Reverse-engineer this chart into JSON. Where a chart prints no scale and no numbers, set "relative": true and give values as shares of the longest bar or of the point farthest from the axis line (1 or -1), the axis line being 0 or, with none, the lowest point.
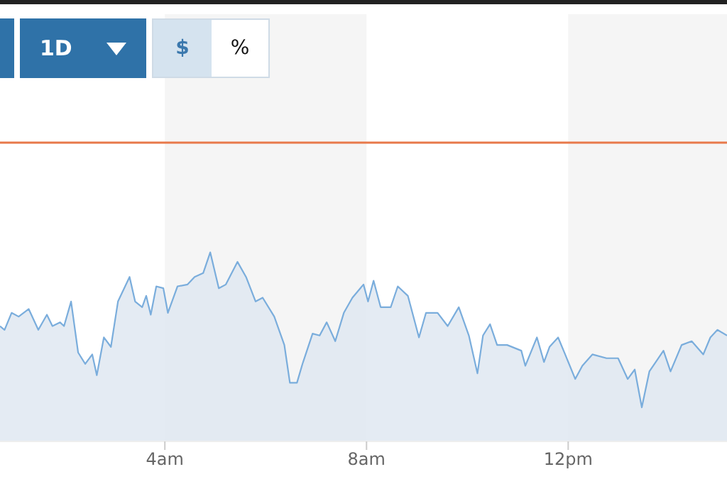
{
  "chart_data": {
    "type": "area",
    "relative": true,
    "x": [
      0.73,
      0.82,
      0.96,
      1.1,
      1.3,
      1.49,
      1.66,
      1.77,
      1.92,
      2.0,
      2.14,
      2.28,
      2.42,
      2.56,
      2.65,
      2.79,
      2.93,
      3.07,
      3.3,
      3.41,
      3.55,
      3.63,
      3.72,
      3.83,
      3.97,
      4.06,
      4.25,
      4.45,
      4.59,
      4.76,
      4.9,
      5.07,
      5.21,
      5.44,
      5.61,
      5.8,
      5.94,
      6.17,
      6.37,
      6.48,
      6.62,
      6.73,
      6.93,
      7.07,
      7.21,
      7.38,
      7.55,
      7.72,
      7.94,
      8.03,
      8.14,
      8.28,
      8.48,
      8.62,
      8.82,
      9.04,
      9.18,
      9.41,
      9.61,
      9.83,
      10.03,
      10.2,
      10.31,
      10.45,
      10.59,
      10.79,
      11.07,
      11.15,
      11.38,
      11.52,
      11.63,
      11.8,
      11.94,
      12.14,
      12.28,
      12.48,
      12.76,
      12.99,
      13.18,
      13.32,
      13.46,
      13.61,
      13.89,
      14.03,
      14.25,
      14.45,
      14.68,
      14.82,
      14.96,
      15.15
    ],
    "series": [
      {
        "color": "#7aaddc",
        "values": [
          0.61,
          0.59,
          0.68,
          0.66,
          0.7,
          0.59,
          0.67,
          0.61,
          0.63,
          0.61,
          0.74,
          0.47,
          0.41,
          0.46,
          0.35,
          0.55,
          0.5,
          0.74,
          0.87,
          0.74,
          0.71,
          0.77,
          0.67,
          0.82,
          0.81,
          0.68,
          0.82,
          0.83,
          0.87,
          0.89,
          1.0,
          0.81,
          0.83,
          0.95,
          0.87,
          0.74,
          0.76,
          0.66,
          0.51,
          0.31,
          0.31,
          0.41,
          0.57,
          0.56,
          0.63,
          0.53,
          0.68,
          0.76,
          0.83,
          0.74,
          0.85,
          0.71,
          0.71,
          0.82,
          0.77,
          0.55,
          0.68,
          0.68,
          0.61,
          0.71,
          0.56,
          0.36,
          0.56,
          0.62,
          0.51,
          0.51,
          0.48,
          0.4,
          0.55,
          0.42,
          0.5,
          0.55,
          0.46,
          0.33,
          0.4,
          0.46,
          0.44,
          0.44,
          0.33,
          0.38,
          0.18,
          0.37,
          0.48,
          0.37,
          0.51,
          0.53,
          0.46,
          0.55,
          0.59,
          0.56
        ]
      }
    ],
    "xlim": [
      0.73,
      15.15
    ],
    "xticks": [
      {
        "value": 4,
        "label": "4am"
      },
      {
        "value": 8,
        "label": "8am"
      },
      {
        "value": 12,
        "label": "12pm"
      }
    ],
    "ref_lines": [
      {
        "axis": "y",
        "value": 1.58,
        "color": "#e8794a"
      }
    ],
    "bands": [
      {
        "axis": "x",
        "from": 4,
        "to": 8,
        "color": "#f5f5f5"
      },
      {
        "axis": "x",
        "from": 12,
        "to": 15.15,
        "color": "#f5f5f5"
      }
    ],
    "legend": false,
    "marker": "none",
    "line_style": "solid",
    "annotations": [
      "1D",
      "$",
      "%"
    ]
  }
}
